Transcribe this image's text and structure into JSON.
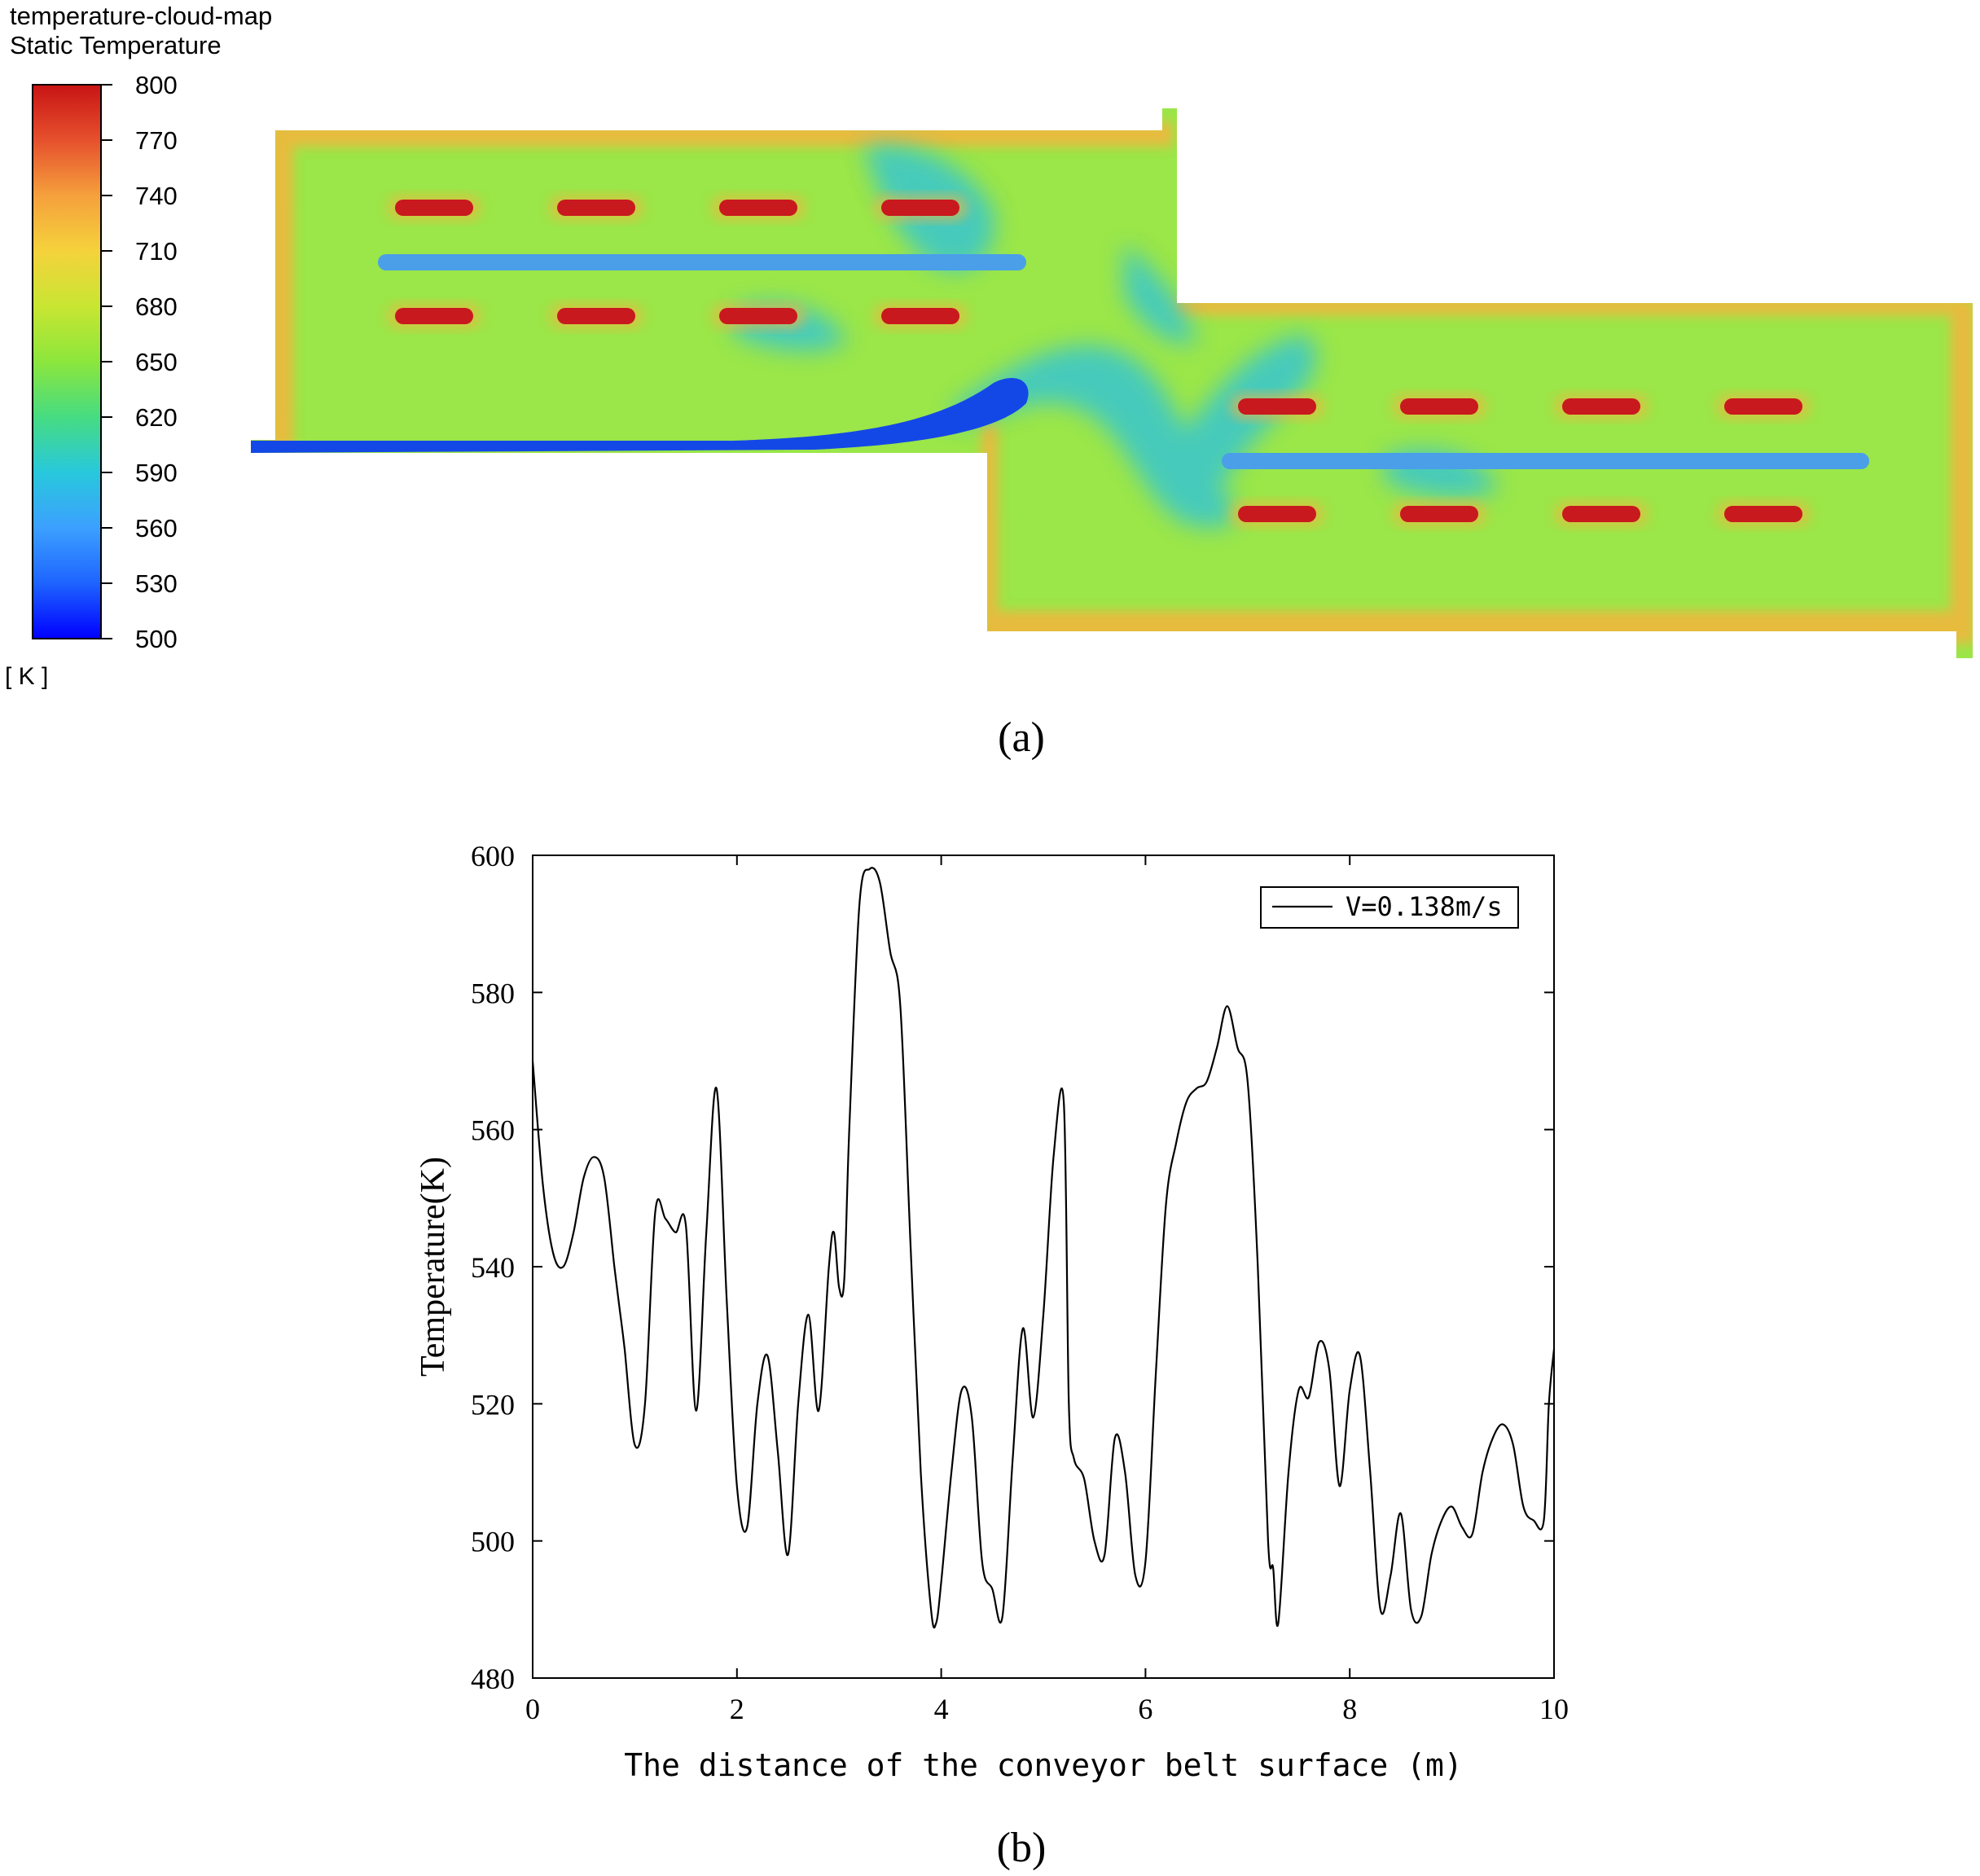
{
  "panel_a": {
    "title_line1": "temperature-cloud-map",
    "title_line2": "Static Temperature",
    "unit": "[ K ]",
    "caption": "(a)",
    "colorbar": {
      "min": 500,
      "max": 800,
      "ticks": [
        "800",
        "770",
        "740",
        "710",
        "680",
        "650",
        "620",
        "590",
        "560",
        "530",
        "500"
      ],
      "colors": [
        "#0000ff",
        "#1e64ff",
        "#3ca0ff",
        "#28c8dc",
        "#46dc82",
        "#8ce63c",
        "#c8e632",
        "#f5d23c",
        "#f5a03c",
        "#e6502d",
        "#c81414"
      ]
    },
    "colors": {
      "background_field": "#9be648",
      "conveyor_belt": "#4a9fe8",
      "heater": "#c8191e",
      "inlet_jet": "#1448e6",
      "cool_plume": "#3cc8c8",
      "warm_edge": "#f5b43c"
    }
  },
  "panel_b": {
    "caption": "(b)",
    "chart_data": {
      "type": "line",
      "title": "",
      "xlabel": "The distance of the conveyor belt surface (m)",
      "ylabel": "Temperature(K)",
      "xlim": [
        0,
        10
      ],
      "ylim": [
        480,
        600
      ],
      "xticks": [
        "0",
        "2",
        "4",
        "6",
        "8",
        "10"
      ],
      "yticks": [
        "480",
        "500",
        "520",
        "540",
        "560",
        "580",
        "600"
      ],
      "legend_position": "top-right",
      "grid": false,
      "series": [
        {
          "name": "V=0.138m/s",
          "color": "#000000",
          "x": [
            0.0,
            0.1,
            0.2,
            0.3,
            0.4,
            0.5,
            0.6,
            0.7,
            0.8,
            0.85,
            0.9,
            1.0,
            1.1,
            1.2,
            1.3,
            1.4,
            1.5,
            1.6,
            1.7,
            1.8,
            1.9,
            2.0,
            2.1,
            2.2,
            2.3,
            2.4,
            2.5,
            2.6,
            2.7,
            2.8,
            2.9,
            2.95,
            3.0,
            3.05,
            3.1,
            3.2,
            3.3,
            3.4,
            3.5,
            3.6,
            3.7,
            3.8,
            3.9,
            3.95,
            4.0,
            4.1,
            4.2,
            4.3,
            4.4,
            4.5,
            4.6,
            4.7,
            4.8,
            4.9,
            5.0,
            5.1,
            5.2,
            5.25,
            5.3,
            5.4,
            5.5,
            5.6,
            5.7,
            5.8,
            5.9,
            6.0,
            6.1,
            6.2,
            6.3,
            6.4,
            6.5,
            6.6,
            6.7,
            6.8,
            6.9,
            7.0,
            7.1,
            7.2,
            7.25,
            7.3,
            7.4,
            7.5,
            7.6,
            7.7,
            7.8,
            7.9,
            8.0,
            8.1,
            8.2,
            8.3,
            8.4,
            8.5,
            8.6,
            8.7,
            8.8,
            8.9,
            9.0,
            9.1,
            9.2,
            9.3,
            9.4,
            9.5,
            9.6,
            9.7,
            9.8,
            9.9,
            9.95,
            10.0
          ],
          "y": [
            570,
            552,
            542,
            540,
            545,
            553,
            556,
            553,
            540,
            534,
            528,
            514,
            520,
            548,
            547,
            545,
            546,
            519,
            545,
            566,
            535,
            508,
            502,
            520,
            527,
            513,
            498,
            520,
            533,
            519,
            540,
            545,
            537,
            538,
            560,
            593,
            598,
            596,
            586,
            578,
            543,
            510,
            490,
            488,
            494,
            510,
            522,
            518,
            497,
            493,
            489,
            512,
            531,
            518,
            533,
            556,
            564,
            520,
            512,
            509,
            500,
            498,
            515,
            510,
            495,
            497,
            524,
            549,
            558,
            564,
            566,
            567,
            572,
            578,
            572,
            567,
            540,
            500,
            496,
            488,
            510,
            522,
            521,
            529,
            525,
            508,
            522,
            527,
            510,
            490,
            495,
            504,
            490,
            489,
            498,
            503,
            505,
            502,
            501,
            510,
            515,
            517,
            514,
            505,
            503,
            503,
            520,
            528
          ]
        }
      ]
    }
  }
}
